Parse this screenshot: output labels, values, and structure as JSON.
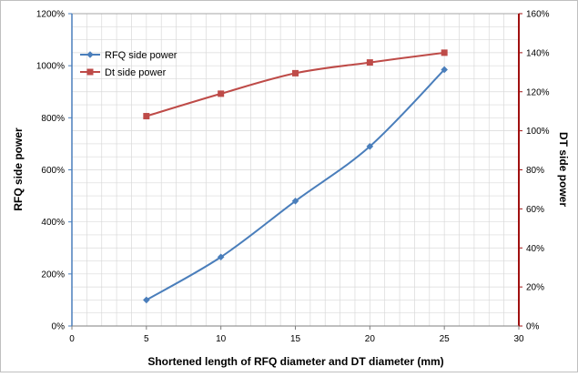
{
  "chart_data": {
    "type": "line",
    "title": "",
    "xlabel": "Shortened length of RFQ diameter and DT diameter (mm)",
    "ylabel_left": "RFQ side power",
    "ylabel_right": "DT side power",
    "xlim": [
      0,
      30
    ],
    "x_ticks": [
      "0",
      "5",
      "10",
      "15",
      "20",
      "25",
      "30"
    ],
    "y_left_lim": [
      0,
      1200
    ],
    "y_left_ticks": [
      "0%",
      "200%",
      "400%",
      "600%",
      "800%",
      "1000%",
      "1200%"
    ],
    "y_right_lim": [
      0,
      160
    ],
    "y_right_ticks": [
      "0%",
      "20%",
      "40%",
      "60%",
      "80%",
      "100%",
      "120%",
      "140%",
      "160%"
    ],
    "grid": true,
    "legend_position": "top-left",
    "series": [
      {
        "name": "RFQ side power",
        "axis": "left",
        "color": "#4a7ebb",
        "marker": "diamond",
        "x": [
          5,
          10,
          15,
          20,
          25
        ],
        "values": [
          100,
          265,
          480,
          690,
          985
        ]
      },
      {
        "name": "Dt side power",
        "axis": "right",
        "color": "#be4b48",
        "marker": "square",
        "x": [
          5,
          10,
          15,
          20,
          25
        ],
        "values": [
          107.5,
          119,
          129.5,
          135,
          140
        ]
      }
    ]
  },
  "colors": {
    "left_axis": "#4a7ebb",
    "right_axis": "#a01010",
    "grid": "#d9d9d9"
  }
}
